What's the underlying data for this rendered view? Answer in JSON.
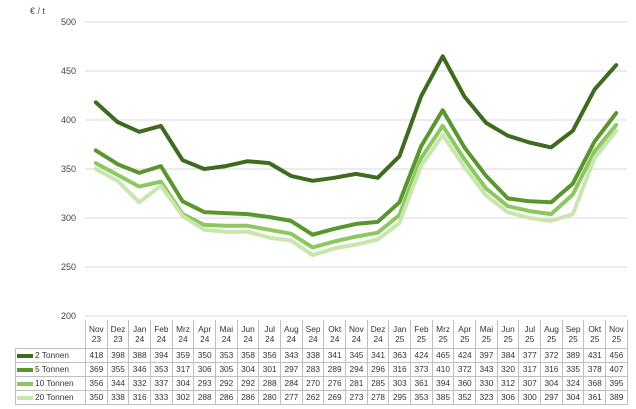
{
  "chart_data": {
    "type": "line",
    "ylabel": "€ / t",
    "ylim": [
      200,
      500
    ],
    "yticks": [
      200,
      250,
      300,
      350,
      400,
      450,
      500
    ],
    "grid": "horizontal",
    "legend": "table-bottom",
    "categories": [
      {
        "month": "Nov",
        "year": "23"
      },
      {
        "month": "Dez",
        "year": "23"
      },
      {
        "month": "Jan",
        "year": "24"
      },
      {
        "month": "Feb",
        "year": "24"
      },
      {
        "month": "Mrz",
        "year": "24"
      },
      {
        "month": "Apr",
        "year": "24"
      },
      {
        "month": "Mai",
        "year": "24"
      },
      {
        "month": "Jun",
        "year": "24"
      },
      {
        "month": "Jul",
        "year": "24"
      },
      {
        "month": "Aug",
        "year": "24"
      },
      {
        "month": "Sep",
        "year": "24"
      },
      {
        "month": "Okt",
        "year": "24"
      },
      {
        "month": "Nov",
        "year": "24"
      },
      {
        "month": "Dez",
        "year": "24"
      },
      {
        "month": "Jan",
        "year": "25"
      },
      {
        "month": "Feb",
        "year": "25"
      },
      {
        "month": "Mrz",
        "year": "25"
      },
      {
        "month": "Apr",
        "year": "25"
      },
      {
        "month": "Mai",
        "year": "25"
      },
      {
        "month": "Jun",
        "year": "25"
      },
      {
        "month": "Jul",
        "year": "25"
      },
      {
        "month": "Aug",
        "year": "25"
      },
      {
        "month": "Sep",
        "year": "25"
      },
      {
        "month": "Okt",
        "year": "25"
      },
      {
        "month": "Nov",
        "year": "25"
      }
    ],
    "series": [
      {
        "name": "2 Tonnen",
        "color": "#3e6b1f",
        "values": [
          418,
          398,
          388,
          394,
          359,
          350,
          353,
          358,
          356,
          343,
          338,
          341,
          345,
          341,
          363,
          424,
          465,
          424,
          397,
          384,
          377,
          372,
          389,
          431,
          456
        ]
      },
      {
        "name": "5 Tonnen",
        "color": "#5a962e",
        "values": [
          369,
          355,
          346,
          353,
          317,
          306,
          305,
          304,
          301,
          297,
          283,
          289,
          294,
          296,
          316,
          373,
          410,
          372,
          343,
          320,
          317,
          316,
          335,
          378,
          407
        ]
      },
      {
        "name": "10 Tonnen",
        "color": "#8cc860",
        "values": [
          356,
          344,
          332,
          337,
          304,
          293,
          292,
          292,
          288,
          284,
          270,
          276,
          281,
          285,
          303,
          361,
          394,
          360,
          330,
          312,
          307,
          304,
          324,
          368,
          395
        ]
      },
      {
        "name": "20 Tonnen",
        "color": "#c9e6ae",
        "values": [
          350,
          338,
          316,
          333,
          302,
          288,
          286,
          286,
          280,
          277,
          262,
          269,
          273,
          278,
          295,
          353,
          385,
          352,
          323,
          306,
          300,
          297,
          304,
          361,
          389
        ]
      }
    ]
  }
}
